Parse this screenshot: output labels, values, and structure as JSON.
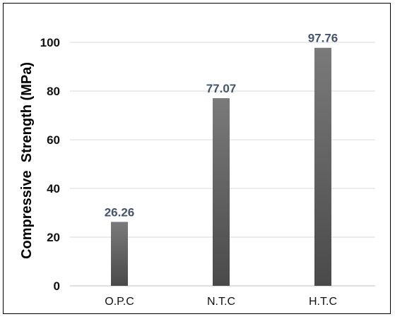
{
  "chart_data": {
    "type": "bar",
    "categories": [
      "O.P.C",
      "N.T.C",
      "H.T.C"
    ],
    "values": [
      26.26,
      77.07,
      97.76
    ],
    "data_labels": [
      "26.26",
      "77.07",
      "97.76"
    ],
    "title": "",
    "xlabel": "",
    "ylabel": "Compressive  Strength (MPa)",
    "ylim": [
      0,
      100
    ],
    "yticks": [
      0,
      20,
      40,
      60,
      80,
      100
    ],
    "grid": true,
    "legend": "none",
    "colors": {
      "bar_top": "#7a7a7a",
      "bar_bottom": "#4a4a4a",
      "data_label": "#44546a",
      "grid": "#d9d9d9"
    }
  }
}
